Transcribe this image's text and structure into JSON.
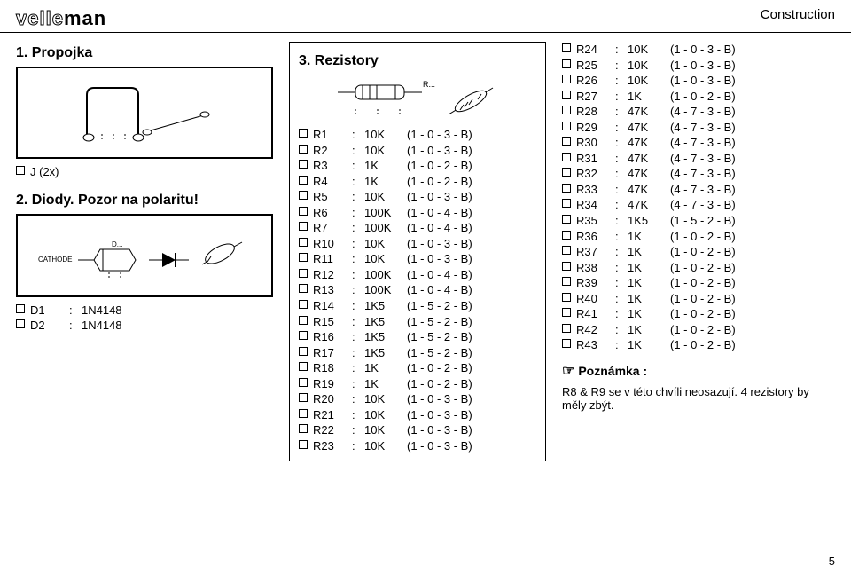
{
  "header": {
    "logo_outline": "velle",
    "logo_solid": "man",
    "right_label": "Construction"
  },
  "section1": {
    "title": "1. Propojka",
    "item_label": "J (2x)"
  },
  "section2": {
    "title": "2. Diody. Pozor na polaritu!",
    "cathode_label": "CATHODE",
    "d_label": "D...",
    "items": [
      {
        "ref": "D1",
        "val": "1N4148"
      },
      {
        "ref": "D2",
        "val": "1N4148"
      }
    ]
  },
  "section3": {
    "title": "3. Rezistory",
    "r_label": "R...",
    "items_left": [
      {
        "ref": "R1",
        "val": "10K",
        "code": "(1 - 0 - 3 - B)"
      },
      {
        "ref": "R2",
        "val": "10K",
        "code": "(1 - 0 - 3 - B)"
      },
      {
        "ref": "R3",
        "val": "1K",
        "code": "(1 - 0 - 2 - B)"
      },
      {
        "ref": "R4",
        "val": "1K",
        "code": "(1 - 0 - 2 - B)"
      },
      {
        "ref": "R5",
        "val": "10K",
        "code": "(1 - 0 - 3 - B)"
      },
      {
        "ref": "R6",
        "val": "100K",
        "code": "(1 - 0 - 4 - B)"
      },
      {
        "ref": "R7",
        "val": "100K",
        "code": "(1 - 0 - 4 - B)"
      },
      {
        "ref": "R10",
        "val": "10K",
        "code": "(1 - 0 - 3 - B)"
      },
      {
        "ref": "R11",
        "val": "10K",
        "code": "(1 - 0 - 3 - B)"
      },
      {
        "ref": "R12",
        "val": "100K",
        "code": "(1 - 0 - 4 - B)"
      },
      {
        "ref": "R13",
        "val": "100K",
        "code": "(1 - 0 - 4 - B)"
      },
      {
        "ref": "R14",
        "val": "1K5",
        "code": "(1 - 5 - 2 - B)"
      },
      {
        "ref": "R15",
        "val": "1K5",
        "code": "(1 - 5 - 2 - B)"
      },
      {
        "ref": "R16",
        "val": "1K5",
        "code": "(1 - 5 - 2 - B)"
      },
      {
        "ref": "R17",
        "val": "1K5",
        "code": "(1 - 5 - 2 - B)"
      },
      {
        "ref": "R18",
        "val": "1K",
        "code": "(1 - 0 - 2 - B)"
      },
      {
        "ref": "R19",
        "val": "1K",
        "code": "(1 - 0 - 2 - B)"
      },
      {
        "ref": "R20",
        "val": "10K",
        "code": "(1 - 0 - 3 - B)"
      },
      {
        "ref": "R21",
        "val": "10K",
        "code": "(1 - 0 - 3 - B)"
      },
      {
        "ref": "R22",
        "val": "10K",
        "code": "(1 - 0 - 3 - B)"
      },
      {
        "ref": "R23",
        "val": "10K",
        "code": "(1 - 0 - 3 - B)"
      }
    ],
    "items_right": [
      {
        "ref": "R24",
        "val": "10K",
        "code": "(1 - 0 - 3 - B)"
      },
      {
        "ref": "R25",
        "val": "10K",
        "code": "(1 - 0 - 3 - B)"
      },
      {
        "ref": "R26",
        "val": "10K",
        "code": "(1 - 0 - 3 - B)"
      },
      {
        "ref": "R27",
        "val": "1K",
        "code": "(1 - 0 - 2 - B)"
      },
      {
        "ref": "R28",
        "val": "47K",
        "code": "(4 - 7 - 3 - B)"
      },
      {
        "ref": "R29",
        "val": "47K",
        "code": "(4 - 7 - 3 - B)"
      },
      {
        "ref": "R30",
        "val": "47K",
        "code": "(4 - 7 - 3 - B)"
      },
      {
        "ref": "R31",
        "val": "47K",
        "code": "(4 - 7 - 3 - B)"
      },
      {
        "ref": "R32",
        "val": "47K",
        "code": "(4 - 7 - 3 - B)"
      },
      {
        "ref": "R33",
        "val": "47K",
        "code": "(4 - 7 - 3 - B)"
      },
      {
        "ref": "R34",
        "val": "47K",
        "code": "(4 - 7 - 3 - B)"
      },
      {
        "ref": "R35",
        "val": "1K5",
        "code": "(1 - 5 - 2 - B)"
      },
      {
        "ref": "R36",
        "val": "1K",
        "code": "(1 - 0 - 2 - B)"
      },
      {
        "ref": "R37",
        "val": "1K",
        "code": "(1 - 0 - 2 - B)"
      },
      {
        "ref": "R38",
        "val": "1K",
        "code": "(1 - 0 - 2 - B)"
      },
      {
        "ref": "R39",
        "val": "1K",
        "code": "(1 - 0 - 2 - B)"
      },
      {
        "ref": "R40",
        "val": "1K",
        "code": "(1 - 0 - 2 - B)"
      },
      {
        "ref": "R41",
        "val": "1K",
        "code": "(1 - 0 - 2 - B)"
      },
      {
        "ref": "R42",
        "val": "1K",
        "code": "(1 - 0 - 2 - B)"
      },
      {
        "ref": "R43",
        "val": "1K",
        "code": "(1 - 0 - 2 - B)"
      }
    ],
    "note_title": "Poznámka :",
    "note_text": "R8 & R9 se v této chvíli neosazují.  4 rezistory by měly zbýt."
  },
  "page_number": "5"
}
